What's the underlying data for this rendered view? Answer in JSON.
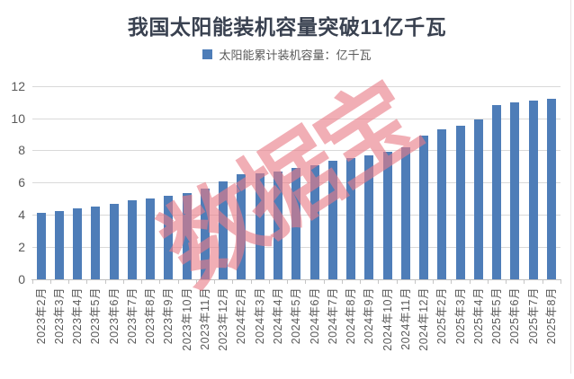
{
  "header": {
    "title": "我国太阳能装机容量突破11亿千瓦"
  },
  "legend": {
    "label": "太阳能累计装机容量：亿千瓦",
    "marker_color": "#4e7db8"
  },
  "watermark": {
    "text": "数据宝",
    "color_rgba": "rgba(232,125,136,0.62)"
  },
  "colors": {
    "bar": "#4e7db8",
    "title": "#394150",
    "axis_text": "#595959",
    "gridline": "#d9d9d9",
    "axis_line": "#bfbfbf"
  },
  "chart_data": {
    "type": "bar",
    "title": "我国太阳能装机容量突破11亿千瓦",
    "series_name": "太阳能累计装机容量：亿千瓦",
    "categories": [
      "2023年2月",
      "2023年3月",
      "2023年4月",
      "2023年5月",
      "2023年6月",
      "2023年7月",
      "2023年8月",
      "2023年9月",
      "2023年10月",
      "2023年11月",
      "2023年12月",
      "2024年2月",
      "2024年3月",
      "2024年4月",
      "2024年5月",
      "2024年6月",
      "2024年7月",
      "2024年8月",
      "2024年9月",
      "2024年10月",
      "2024年11月",
      "2024年12月",
      "2025年2月",
      "2025年3月",
      "2025年4月",
      "2025年5月",
      "2025年6月",
      "2025年7月",
      "2025年8月"
    ],
    "values": [
      4.1,
      4.25,
      4.4,
      4.5,
      4.7,
      4.9,
      5.0,
      5.2,
      5.35,
      5.6,
      6.1,
      6.5,
      6.6,
      6.7,
      6.9,
      7.1,
      7.35,
      7.5,
      7.7,
      7.9,
      8.2,
      8.9,
      9.3,
      9.5,
      9.9,
      10.8,
      11.0,
      11.1,
      11.2
    ],
    "xlabel": "",
    "ylabel": "",
    "ylim": [
      0,
      12
    ],
    "yticks": [
      0,
      2,
      4,
      6,
      8,
      10,
      12
    ],
    "grid": true,
    "bar_color": "#4e7db8",
    "legend_position": "top",
    "x_tick_rotation": 90
  }
}
